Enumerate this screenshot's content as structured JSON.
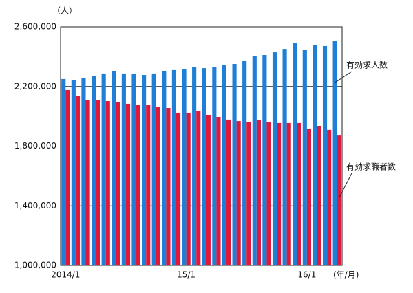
{
  "chart_data": {
    "type": "bar",
    "y_unit": "（人）",
    "x_unit": "(年/月)",
    "categories": [
      "2014/1",
      null,
      null,
      null,
      null,
      null,
      null,
      null,
      null,
      null,
      null,
      null,
      "15/1",
      null,
      null,
      null,
      null,
      null,
      null,
      null,
      null,
      null,
      null,
      null,
      "16/1",
      null,
      null,
      null
    ],
    "series": [
      {
        "name": "有効求人数",
        "color": "#1f7fd6",
        "values": [
          2250000,
          2245000,
          2255000,
          2268000,
          2287000,
          2305000,
          2287000,
          2282000,
          2277000,
          2287000,
          2305000,
          2310000,
          2314000,
          2328000,
          2323000,
          2328000,
          2342000,
          2351000,
          2370000,
          2406000,
          2411000,
          2429000,
          2452000,
          2490000,
          2448000,
          2480000,
          2471000,
          2503000
        ]
      },
      {
        "name": "有効求職者数",
        "color": "#e0193c",
        "values": [
          2176000,
          2139000,
          2107000,
          2107000,
          2102000,
          2097000,
          2084000,
          2079000,
          2079000,
          2065000,
          2056000,
          2024000,
          2024000,
          2033000,
          2010000,
          1996000,
          1978000,
          1968000,
          1964000,
          1973000,
          1959000,
          1955000,
          1955000,
          1955000,
          1918000,
          1936000,
          1909000,
          1871000
        ]
      }
    ],
    "ylim": [
      1000000,
      2600000
    ],
    "yticks": [
      {
        "value": 1000000,
        "label": "1,000,000"
      },
      {
        "value": 1400000,
        "label": "1,400,000"
      },
      {
        "value": 1800000,
        "label": "1,800,000"
      },
      {
        "value": 2200000,
        "label": "2,200,000"
      },
      {
        "value": 2600000,
        "label": "2,600,000"
      }
    ],
    "grid": true
  }
}
